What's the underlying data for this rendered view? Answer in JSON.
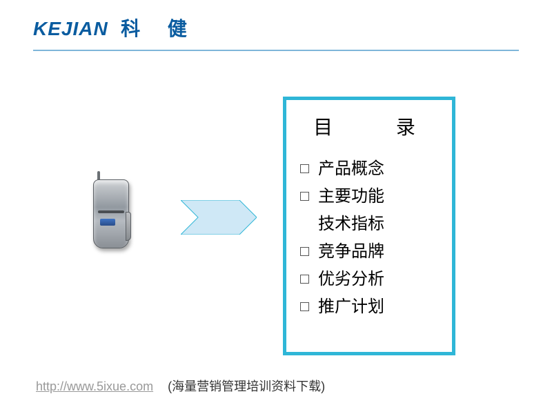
{
  "header": {
    "logo_en": "KEJIAN",
    "logo_cn": "科 健"
  },
  "arrow": {
    "fill": "#cfe8f6",
    "stroke": "#2fb6d7",
    "stroke_width": 1,
    "width": 110,
    "height": 50
  },
  "toc": {
    "title": "目  录",
    "border_color": "#2fb6d7",
    "items": [
      {
        "label": "产品概念",
        "bullet": true
      },
      {
        "label": "主要功能",
        "bullet": true
      },
      {
        "label": "技术指标",
        "bullet": false
      },
      {
        "label": "竞争品牌",
        "bullet": true
      },
      {
        "label": "优劣分析",
        "bullet": true
      },
      {
        "label": "推广计划",
        "bullet": true
      }
    ]
  },
  "footer": {
    "link_text": "http://www.5ixue.com",
    "link_href": "http://www.5ixue.com",
    "note": "(海量营销管理培训资料下载)"
  }
}
